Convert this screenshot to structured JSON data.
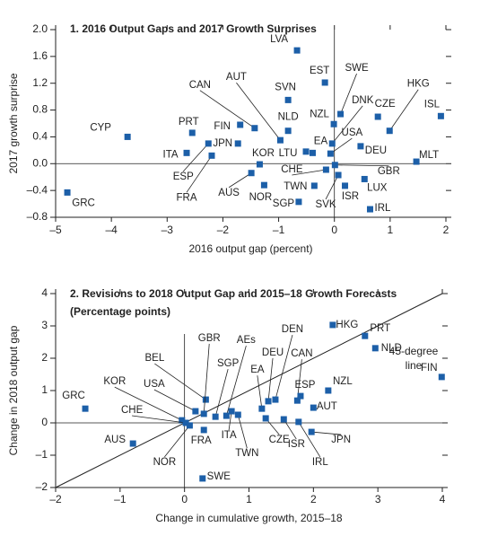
{
  "chart_data": [
    {
      "type": "scatter",
      "title": "1. 2016 Output Gaps and 2017 Growth Surprises",
      "x_label": "2016 output gap (percent)",
      "y_label": "2017 growth surprise",
      "color": "#1c5fa8",
      "xlim": [
        -5,
        2
      ],
      "ylim": [
        -0.8,
        2.0
      ],
      "xticks": [
        {
          "value": -5,
          "label": "–5"
        },
        {
          "value": -4,
          "label": "–4"
        },
        {
          "value": -3,
          "label": "–3"
        },
        {
          "value": -2,
          "label": "–2"
        },
        {
          "value": -1,
          "label": "–1"
        },
        0,
        1,
        2
      ],
      "yticks": [
        {
          "value": -0.8,
          "label": "–0.8"
        },
        {
          "value": -0.4,
          "label": "–0.4"
        },
        {
          "value": 0,
          "label": "0.0"
        },
        0.4,
        0.8,
        1.2,
        1.6,
        {
          "value": 2,
          "label": "2.0"
        }
      ],
      "labels": [
        "GRC",
        "CYP",
        "PRT",
        "ITA",
        "ESP",
        "JPN",
        "FRA",
        "FIN",
        "CAN",
        "AUT",
        "LVA",
        "SVN",
        "NLD",
        "EST",
        "SWE",
        "NZL",
        "DNK",
        "CZE",
        "HKG",
        "ISL",
        "USA",
        "EA",
        "LTU",
        "DEU",
        "MLT",
        "KOR",
        "CHE",
        "GBR",
        "AUS",
        "NOR",
        "TWN",
        "SGP",
        "SVK",
        "ISR",
        "LUX",
        "IRL"
      ],
      "x": [
        -4.79,
        -3.71,
        -2.55,
        -2.65,
        -2.26,
        -1.73,
        -2.2,
        -1.69,
        -1.43,
        -0.97,
        -0.67,
        -0.83,
        -0.83,
        -0.17,
        0.11,
        -0.01,
        -0.04,
        0.78,
        0.99,
        1.91,
        -0.07,
        -0.39,
        -0.51,
        0.47,
        1.47,
        -1.34,
        -0.15,
        0.01,
        -1.49,
        -1.26,
        -0.36,
        -0.64,
        0.07,
        0.19,
        0.54,
        0.64
      ],
      "values": [
        -0.43,
        0.4,
        0.46,
        0.16,
        0.3,
        0.3,
        0.12,
        0.58,
        0.53,
        0.35,
        1.69,
        0.95,
        0.49,
        1.21,
        0.74,
        0.59,
        0.3,
        0.7,
        0.49,
        0.71,
        0.15,
        0.16,
        0.18,
        0.26,
        0.03,
        -0.01,
        -0.09,
        -0.02,
        -0.14,
        -0.32,
        -0.33,
        -0.57,
        -0.17,
        -0.33,
        -0.23,
        -0.68
      ]
    },
    {
      "type": "scatter",
      "title": "2. Revisions to 2018 Output Gap and 2015–18 Growth Forecasts",
      "subtitle": "(Percentage points)",
      "x_label": "Change in cumulative growth, 2015–18",
      "y_label": "Change in 2018 output gap",
      "annotation_lines": [
        "45-degree",
        "line"
      ],
      "color": "#1c5fa8",
      "xlim": [
        -2,
        4
      ],
      "ylim": [
        -2,
        4
      ],
      "xticks": [
        {
          "value": -2,
          "label": "–2"
        },
        {
          "value": -1,
          "label": "–1"
        },
        0,
        1,
        2,
        3,
        4
      ],
      "yticks": [
        {
          "value": -2,
          "label": "–2"
        },
        {
          "value": -1,
          "label": "–1"
        },
        0,
        1,
        2,
        3,
        4
      ],
      "labels": [
        "GRC",
        "AUS",
        "KOR",
        "CHE",
        "USA",
        "NOR",
        "BEL",
        "FRA",
        "GBR",
        "SGP",
        "AEs",
        "ITA",
        "TWN",
        "SWE",
        "EA",
        "DEU",
        "DEN",
        "CAN",
        "ESP",
        "NZL",
        "AUT",
        "JPN",
        "CZE",
        "ISR",
        "IRL",
        "HKG",
        "PRT",
        "NLD",
        "FIN"
      ],
      "x": [
        -1.54,
        -0.8,
        -0.04,
        0.02,
        0.17,
        0.08,
        0.33,
        0.3,
        0.3,
        0.48,
        0.65,
        0.73,
        0.83,
        0.28,
        1.2,
        1.3,
        1.41,
        1.75,
        1.8,
        2.23,
        2.0,
        1.97,
        1.26,
        1.54,
        1.77,
        2.3,
        2.8,
        2.96,
        3.99
      ],
      "values": [
        0.44,
        -0.64,
        0.08,
        0.0,
        0.36,
        -0.08,
        0.72,
        -0.22,
        0.28,
        0.19,
        0.22,
        0.36,
        0.25,
        -1.72,
        0.44,
        0.67,
        0.72,
        0.69,
        0.83,
        1.0,
        0.47,
        -0.28,
        0.14,
        0.11,
        0.03,
        3.03,
        2.69,
        2.31,
        1.42
      ]
    }
  ]
}
